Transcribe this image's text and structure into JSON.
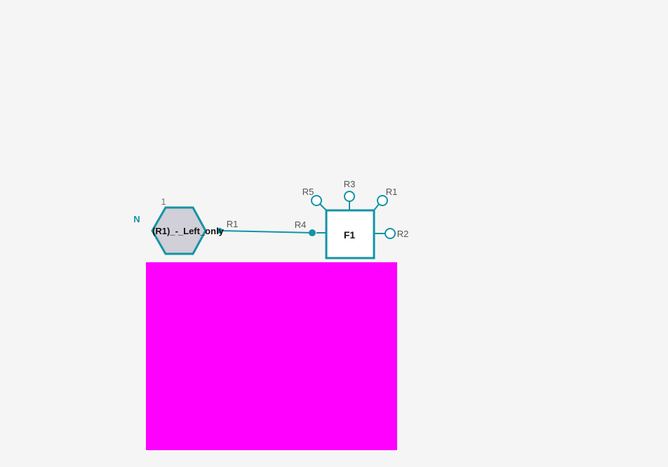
{
  "colors": {
    "background": "#f5f5f5",
    "accent": "#1493a5",
    "monomer_fill": "#d1cfd7",
    "highlight_block": "#ff00ff"
  },
  "polymer": {
    "repeat_label": "N",
    "repeat_count": "1"
  },
  "monomer": {
    "label": "(R1)_-_Left_only",
    "attachment_label": "R1"
  },
  "fragment": {
    "label": "F1",
    "connected_point": "R4",
    "points": {
      "top_left": "R5",
      "top": "R3",
      "top_right": "R1",
      "right": "R2"
    }
  }
}
